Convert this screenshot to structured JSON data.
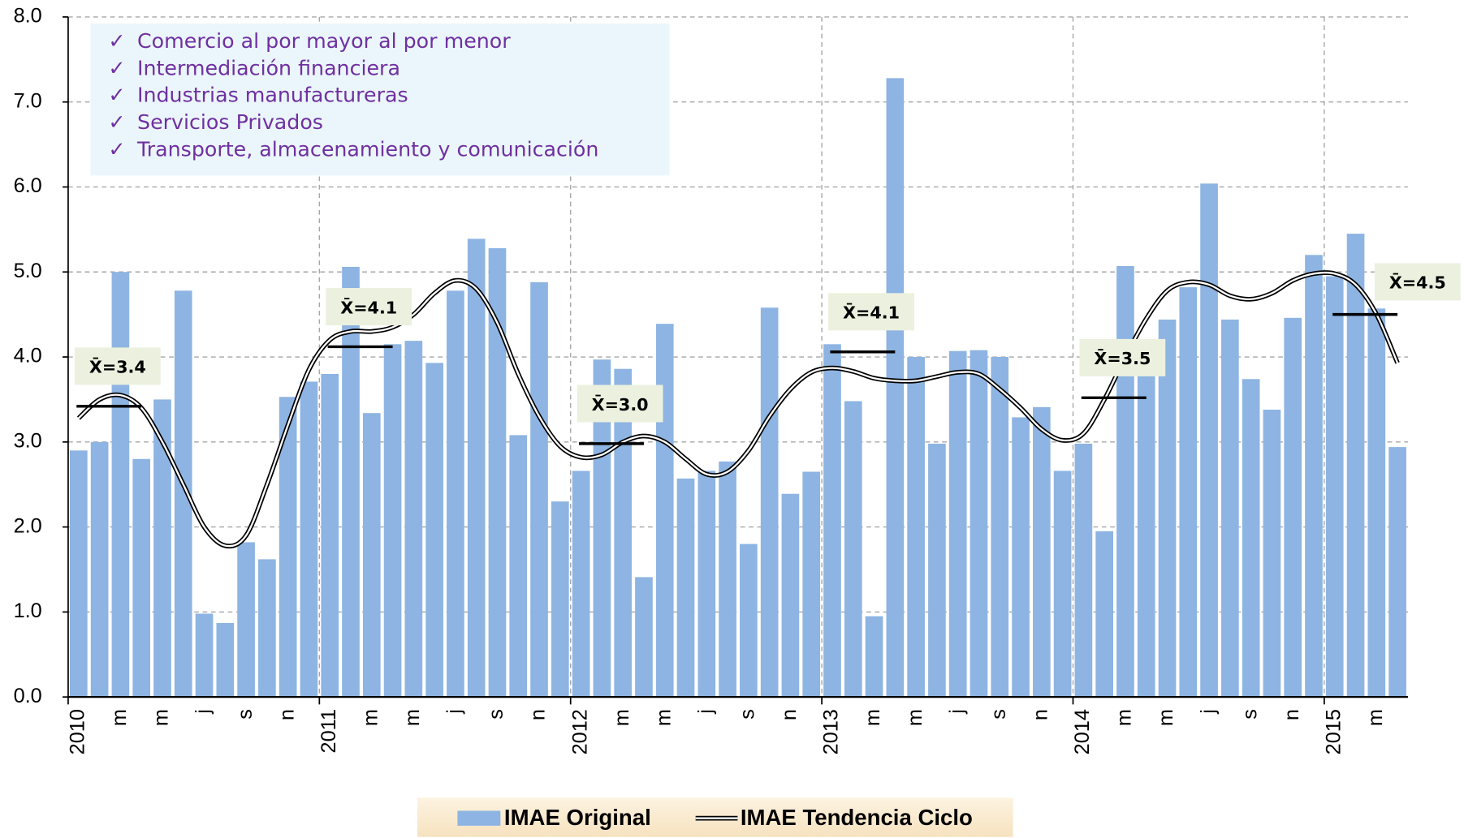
{
  "chart_data": {
    "type": "bar",
    "categories": [
      "2010",
      null,
      "m",
      null,
      "m",
      null,
      "j",
      null,
      "s",
      null,
      "n",
      null,
      "2011",
      null,
      "m",
      null,
      "m",
      null,
      "j",
      null,
      "s",
      null,
      "n",
      null,
      "2012",
      null,
      "m",
      null,
      "m",
      null,
      "j",
      null,
      "s",
      null,
      "n",
      null,
      "2013",
      null,
      "m",
      null,
      "m",
      null,
      "j",
      null,
      "s",
      null,
      "n",
      null,
      "2014",
      null,
      "m",
      null,
      "m",
      null,
      "j",
      null,
      "s",
      null,
      "n",
      null,
      "2015",
      null,
      "m",
      null
    ],
    "series": [
      {
        "name": "IMAE Original",
        "type": "bar",
        "color": "#8db4e2",
        "values": [
          2.9,
          3.0,
          5.0,
          2.8,
          3.5,
          4.78,
          0.98,
          0.87,
          1.82,
          1.62,
          3.53,
          3.71,
          3.8,
          5.06,
          3.34,
          4.15,
          4.19,
          3.93,
          4.78,
          5.39,
          5.28,
          3.08,
          4.88,
          2.3,
          2.66,
          3.97,
          3.86,
          1.41,
          4.39,
          2.57,
          2.66,
          2.77,
          1.8,
          4.58,
          2.39,
          2.65,
          4.15,
          3.48,
          0.95,
          7.28,
          4.0,
          2.98,
          4.07,
          4.08,
          4.0,
          3.29,
          3.41,
          2.66,
          2.98,
          1.95,
          5.07,
          4.06,
          4.44,
          4.82,
          6.04,
          4.44,
          3.74,
          3.38,
          4.46,
          5.2,
          4.95,
          5.45,
          4.57,
          2.94
        ]
      },
      {
        "name": "IMAE Tendencia Ciclo",
        "type": "line",
        "color": "#000000",
        "values": [
          3.28,
          3.5,
          3.55,
          3.4,
          3.0,
          2.5,
          2.0,
          1.78,
          1.9,
          2.5,
          3.2,
          3.85,
          4.2,
          4.3,
          4.3,
          4.35,
          4.5,
          4.75,
          4.9,
          4.8,
          4.4,
          3.8,
          3.3,
          2.95,
          2.82,
          2.85,
          3.0,
          3.07,
          3.0,
          2.8,
          2.62,
          2.65,
          2.9,
          3.3,
          3.62,
          3.82,
          3.87,
          3.83,
          3.75,
          3.72,
          3.72,
          3.77,
          3.82,
          3.8,
          3.62,
          3.4,
          3.15,
          3.02,
          3.1,
          3.5,
          4.0,
          4.45,
          4.78,
          4.88,
          4.85,
          4.72,
          4.68,
          4.75,
          4.9,
          4.98,
          4.98,
          4.85,
          4.5,
          3.93
        ]
      }
    ],
    "means": [
      {
        "label": "X̄=3.4",
        "value": 3.42
      },
      {
        "label": "X̄=4.1",
        "value": 4.12
      },
      {
        "label": "X̄=3.0",
        "value": 2.98
      },
      {
        "label": "X̄=4.1",
        "value": 4.06
      },
      {
        "label": "X̄=3.5",
        "value": 3.52
      },
      {
        "label": "X̄=4.5",
        "value": 4.5
      }
    ],
    "note_items": [
      "Comercio al por mayor al por menor",
      "Intermediación financiera",
      "Industrias manufactureras",
      "Servicios Privados",
      "Transporte, almacenamiento y comunicación"
    ],
    "ylim": [
      0,
      8
    ],
    "yticks": [
      {
        "value": 0,
        "label": "0.0"
      },
      {
        "value": 1,
        "label": "1.0"
      },
      {
        "value": 2,
        "label": "2.0"
      },
      {
        "value": 3,
        "label": "3.0"
      },
      {
        "value": 4,
        "label": "4.0"
      },
      {
        "value": 5,
        "label": "5.0"
      },
      {
        "value": 6,
        "label": "6.0"
      },
      {
        "value": 7,
        "label": "7.0"
      },
      {
        "value": 8,
        "label": "8.0"
      }
    ],
    "grid": true,
    "legend": "bottom"
  }
}
